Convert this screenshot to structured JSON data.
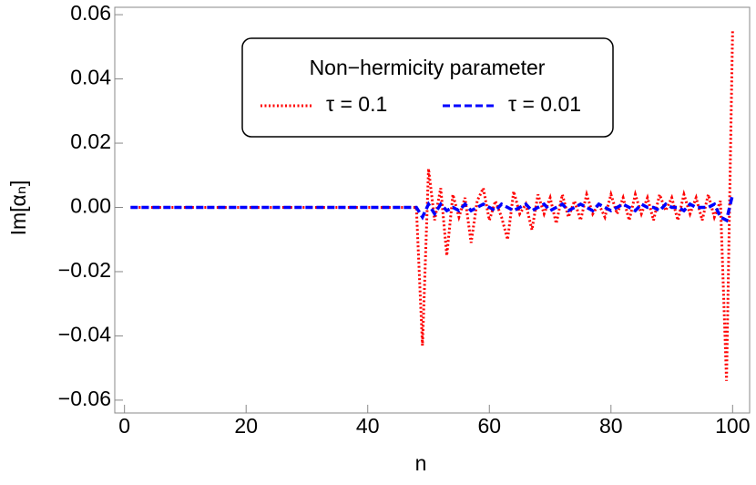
{
  "chart_data": {
    "type": "line",
    "xlabel": "n",
    "ylabel": "Im[αₙ]",
    "legend_title": "Non−hermicity parameter",
    "x": [
      1,
      2,
      3,
      4,
      5,
      6,
      7,
      8,
      9,
      10,
      11,
      12,
      13,
      14,
      15,
      16,
      17,
      18,
      19,
      20,
      21,
      22,
      23,
      24,
      25,
      26,
      27,
      28,
      29,
      30,
      31,
      32,
      33,
      34,
      35,
      36,
      37,
      38,
      39,
      40,
      41,
      42,
      43,
      44,
      45,
      46,
      47,
      48,
      49,
      50,
      51,
      52,
      53,
      54,
      55,
      56,
      57,
      58,
      59,
      60,
      61,
      62,
      63,
      64,
      65,
      66,
      67,
      68,
      69,
      70,
      71,
      72,
      73,
      74,
      75,
      76,
      77,
      78,
      79,
      80,
      81,
      82,
      83,
      84,
      85,
      86,
      87,
      88,
      89,
      90,
      91,
      92,
      93,
      94,
      95,
      96,
      97,
      98,
      99,
      100
    ],
    "series": [
      {
        "name": "τ = 0.1",
        "color": "#ff0000",
        "style": "dotted",
        "values": [
          0,
          0,
          0,
          0,
          0,
          0,
          0,
          0,
          0,
          0,
          0,
          0,
          0,
          0,
          0,
          0,
          0,
          0,
          0,
          0,
          0,
          0,
          0,
          0,
          0,
          0,
          0,
          0,
          0,
          0,
          0,
          0,
          0,
          0,
          0,
          0,
          0,
          0,
          0,
          0,
          0,
          0,
          0,
          0,
          0,
          0,
          0,
          0,
          -0.043,
          0.012,
          -0.004,
          0.006,
          -0.015,
          0.004,
          -0.003,
          0.003,
          -0.011,
          0.002,
          0.006,
          -0.004,
          0.002,
          -0.003,
          -0.01,
          0.005,
          -0.002,
          0.001,
          -0.007,
          0.004,
          -0.002,
          0.003,
          -0.005,
          0.004,
          -0.003,
          0.002,
          -0.004,
          0.004,
          -0.002,
          0.001,
          -0.003,
          0.004,
          -0.002,
          0.003,
          -0.004,
          0.004,
          -0.002,
          0.003,
          -0.004,
          0.004,
          -0.001,
          0.003,
          -0.004,
          0.004,
          -0.002,
          0.003,
          -0.004,
          0.004,
          -0.003,
          0.002,
          -0.054,
          0.055
        ]
      },
      {
        "name": "τ = 0.01",
        "color": "#0000ff",
        "style": "dashed",
        "values": [
          0,
          0,
          0,
          0,
          0,
          0,
          0,
          0,
          0,
          0,
          0,
          0,
          0,
          0,
          0,
          0,
          0,
          0,
          0,
          0,
          0,
          0,
          0,
          0,
          0,
          0,
          0,
          0,
          0,
          0,
          0,
          0,
          0,
          0,
          0,
          0,
          0,
          0,
          0,
          0,
          0,
          0,
          0,
          0,
          0,
          0,
          0,
          0,
          -0.003,
          0.001,
          -0.002,
          0.001,
          -0.001,
          0,
          -0.001,
          0.001,
          -0.001,
          0,
          0.001,
          0,
          -0.001,
          0.001,
          0,
          -0.001,
          0,
          0.001,
          -0.001,
          0,
          0.001,
          -0.001,
          0,
          0.001,
          -0.001,
          0,
          0.001,
          0,
          -0.001,
          0.001,
          0,
          -0.001,
          0,
          0.001,
          0,
          -0.001,
          0.001,
          0,
          0,
          -0.001,
          0.001,
          0,
          0,
          -0.001,
          0.001,
          0,
          0,
          0,
          0.001,
          -0.003,
          -0.004,
          0.004
        ]
      }
    ],
    "xlim": [
      -1.6,
      102.8
    ],
    "ylim": [
      -0.064,
      0.0623
    ],
    "xticks": [
      0,
      20,
      40,
      60,
      80,
      100
    ],
    "yticks": [
      {
        "value": -0.06,
        "label": "−0.06"
      },
      {
        "value": -0.04,
        "label": "−0.04"
      },
      {
        "value": -0.02,
        "label": "−0.02"
      },
      {
        "value": 0,
        "label": "0.00"
      },
      0.02,
      0.04,
      0.06
    ]
  }
}
